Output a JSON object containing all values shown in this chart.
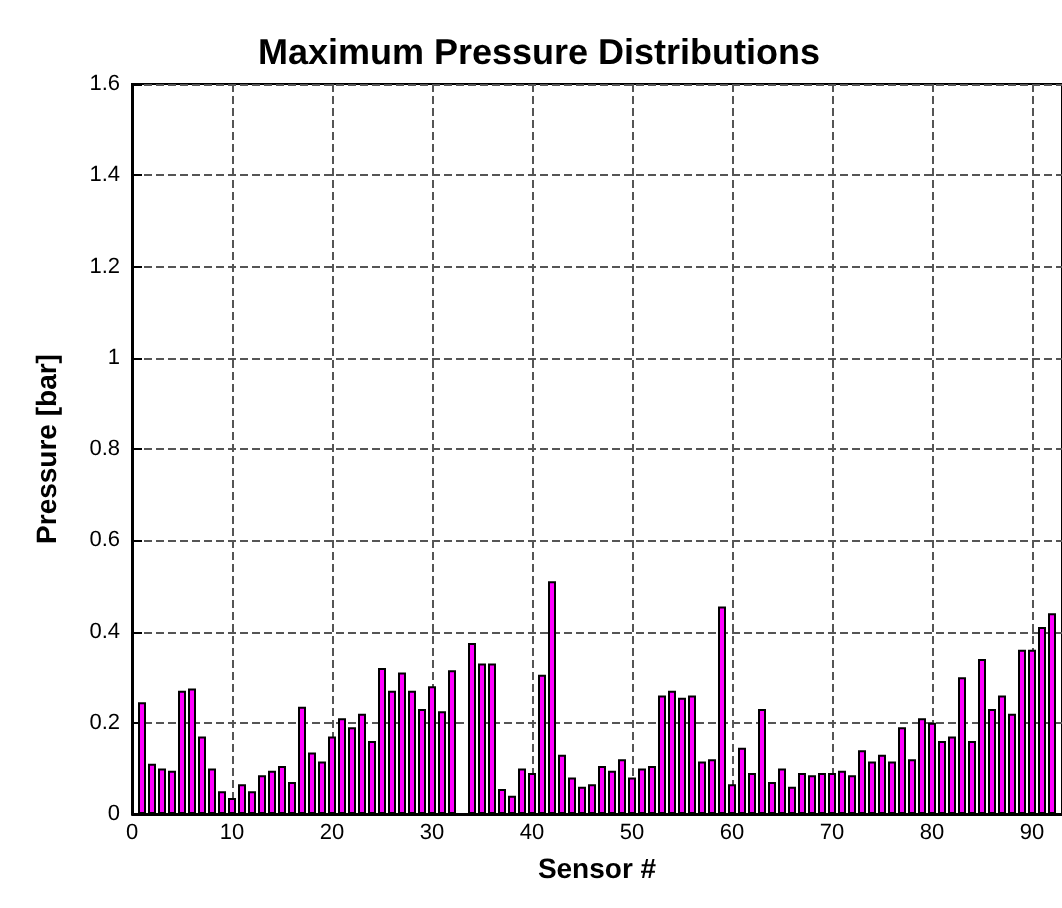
{
  "chart_data": {
    "type": "bar",
    "title": "Maximum Pressure Distributions",
    "xlabel": "Sensor #",
    "ylabel": "Pressure [bar]",
    "x": [
      1,
      2,
      3,
      4,
      5,
      6,
      7,
      8,
      9,
      10,
      11,
      12,
      13,
      14,
      15,
      16,
      17,
      18,
      19,
      20,
      21,
      22,
      23,
      24,
      25,
      26,
      27,
      28,
      29,
      30,
      31,
      32,
      33,
      34,
      35,
      36,
      37,
      38,
      39,
      40,
      41,
      42,
      43,
      44,
      45,
      46,
      47,
      48,
      49,
      50,
      51,
      52,
      53,
      54,
      55,
      56,
      57,
      58,
      59,
      60,
      61,
      62,
      63,
      64,
      65,
      66,
      67,
      68,
      69,
      70,
      71,
      72,
      73,
      74,
      75,
      76,
      77,
      78,
      79,
      80,
      81,
      82,
      83,
      84,
      85,
      86,
      87,
      88,
      89,
      90,
      91,
      92
    ],
    "values": [
      0.245,
      0.11,
      0.1,
      0.095,
      0.27,
      0.275,
      0.17,
      0.1,
      0.05,
      0.035,
      0.065,
      0.05,
      0.085,
      0.095,
      0.105,
      0.07,
      0.235,
      0.135,
      0.115,
      0.17,
      0.21,
      0.19,
      0.22,
      0.16,
      0.32,
      0.27,
      0.31,
      0.27,
      0.23,
      0.28,
      0.225,
      0.315,
      null,
      0.375,
      0.33,
      0.33,
      0.055,
      0.04,
      0.1,
      0.09,
      0.305,
      0.51,
      0.13,
      0.08,
      0.06,
      0.065,
      0.105,
      0.095,
      0.12,
      0.08,
      0.1,
      0.105,
      0.26,
      0.27,
      0.255,
      0.26,
      0.115,
      0.12,
      0.455,
      0.065,
      0.145,
      0.09,
      0.23,
      0.07,
      0.1,
      0.06,
      0.09,
      0.085,
      0.09,
      0.09,
      0.095,
      0.085,
      0.14,
      0.115,
      0.13,
      0.115,
      0.19,
      0.12,
      0.21,
      0.2,
      0.16,
      0.17,
      0.3,
      0.16,
      0.34,
      0.23,
      0.26,
      0.22,
      0.36,
      0.36,
      0.41,
      0.44
    ],
    "color": "#ff00ff",
    "xlim": [
      0,
      93
    ],
    "xticks": [
      0,
      10,
      20,
      30,
      40,
      50,
      60,
      70,
      80,
      90
    ],
    "ylim": [
      0,
      1.6
    ],
    "yticks": [
      0,
      0.2,
      0.4,
      0.6,
      0.8,
      1,
      1.2,
      1.4,
      1.6
    ],
    "grid": true,
    "line_style": "dashed"
  }
}
